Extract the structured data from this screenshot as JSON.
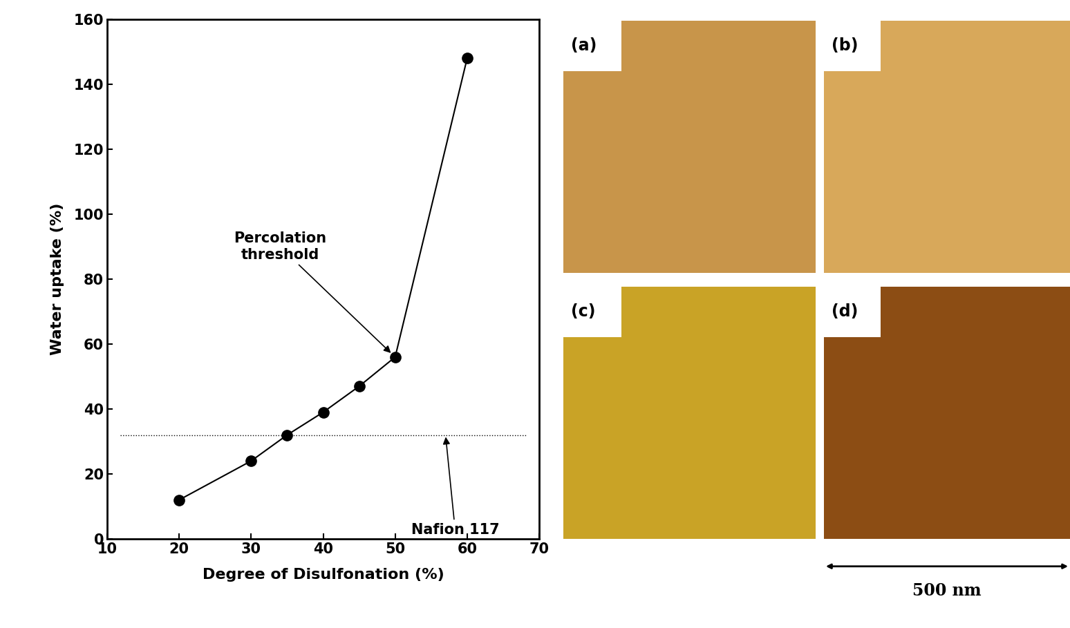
{
  "chart_data": {
    "type": "line",
    "x": [
      20,
      30,
      35,
      40,
      45,
      50,
      60
    ],
    "values": [
      12,
      24,
      32,
      39,
      47,
      56,
      148
    ],
    "color": "#000000",
    "marker": "circle",
    "line_style": "solid",
    "x_label": "Degree of Disulfonation (%)",
    "y_label": "Water uptake (%)",
    "xlim": [
      10,
      70
    ],
    "xticks": [
      10,
      20,
      30,
      40,
      50,
      60,
      70
    ],
    "ylim": [
      0,
      160
    ],
    "yticks": [
      0,
      20,
      40,
      60,
      80,
      100,
      120,
      140,
      160
    ],
    "grid": false,
    "annotations": [
      {
        "text": "Percolation\nthreshold",
        "x": 50,
        "y": 56
      }
    ],
    "reference_line": {
      "y": 32,
      "text": "Nafion 117",
      "x": 57,
      "line_style": "dotted"
    }
  },
  "panels": {
    "labels": [
      "(a)",
      "(b)",
      "(c)",
      "(d)"
    ],
    "scale_bar": "500 nm"
  }
}
